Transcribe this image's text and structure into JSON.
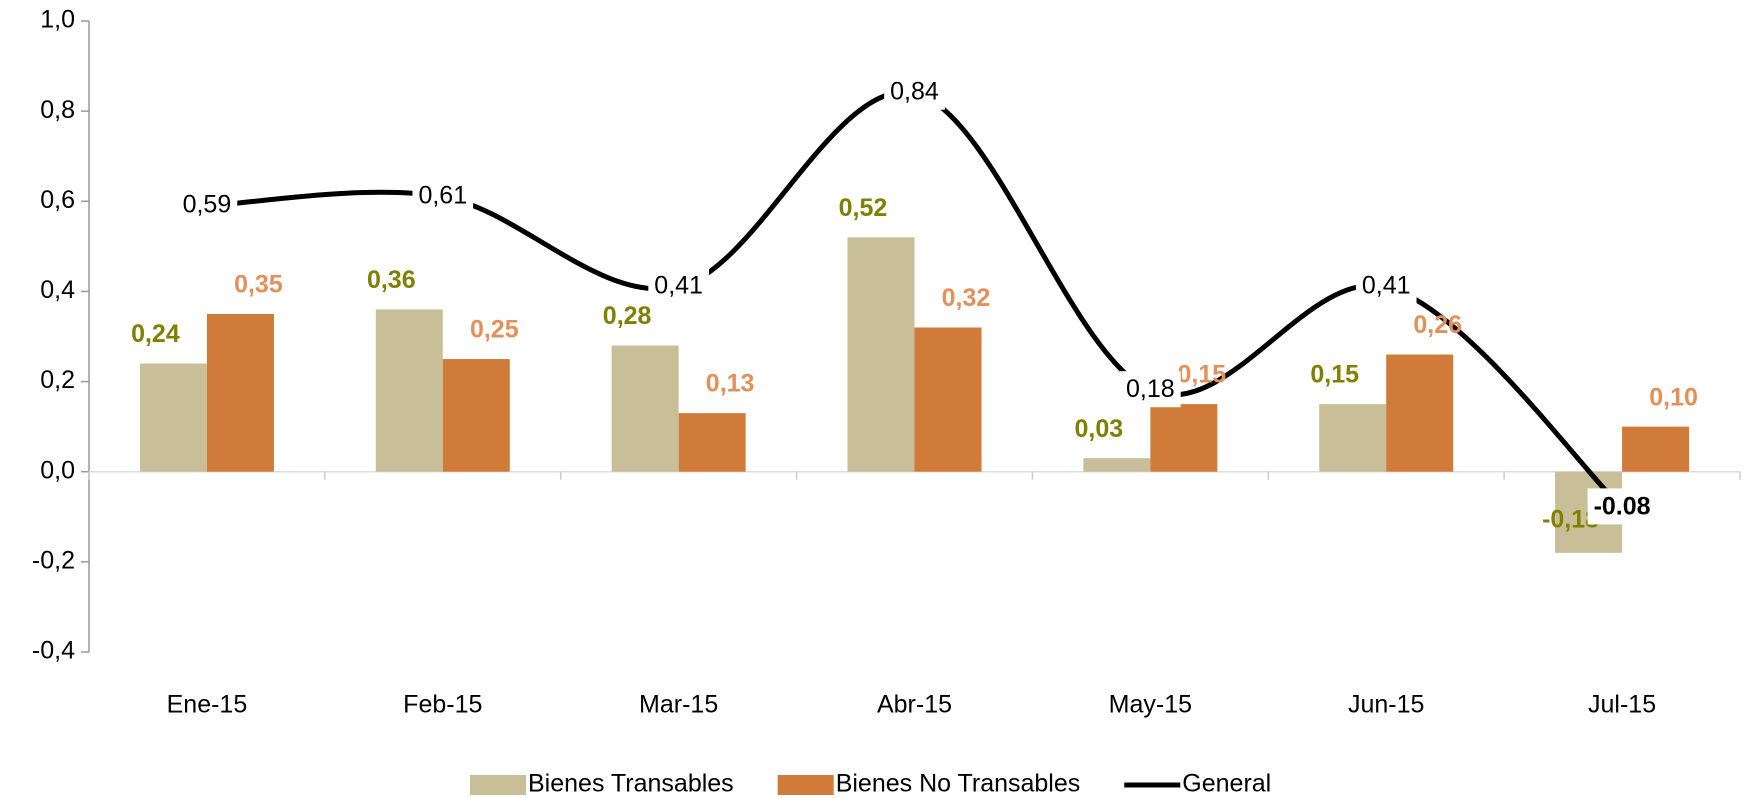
{
  "chart_data": {
    "type": "bar",
    "categories": [
      "Ene-15",
      "Feb-15",
      "Mar-15",
      "Abr-15",
      "May-15",
      "Jun-15",
      "Jul-15"
    ],
    "series": [
      {
        "name": "Bienes Transables",
        "type": "bar",
        "color": "#c8bf98",
        "label_color": "#7f7f00",
        "values": [
          0.24,
          0.36,
          0.28,
          0.52,
          0.03,
          0.15,
          -0.18
        ],
        "value_labels": [
          "0,24",
          "0,36",
          "0,28",
          "0,52",
          "0,03",
          "0,15",
          "-0,18"
        ]
      },
      {
        "name": "Bienes No Transables",
        "type": "bar",
        "color": "#d07b3a",
        "label_color": "#e3905a",
        "values": [
          0.35,
          0.25,
          0.13,
          0.32,
          0.15,
          0.26,
          0.1
        ],
        "value_labels": [
          "0,35",
          "0,25",
          "0,13",
          "0,32",
          "0,15",
          "0,26",
          "0,10"
        ]
      },
      {
        "name": "General",
        "type": "line",
        "color": "#000000",
        "label_color": "#000000",
        "values": [
          0.59,
          0.61,
          0.41,
          0.84,
          0.18,
          0.41,
          -0.08
        ],
        "value_labels": [
          "0,59",
          "0,61",
          "0,41",
          "0,84",
          "0,18",
          "0,41",
          "-0.08"
        ]
      }
    ],
    "ylim": [
      -0.4,
      1.0
    ],
    "yticks": [
      {
        "value": -0.4,
        "label": "-0,4"
      },
      {
        "value": -0.2,
        "label": "-0,2"
      },
      {
        "value": 0,
        "label": "0,0"
      },
      {
        "value": 0.2,
        "label": "0,2"
      },
      {
        "value": 0.4,
        "label": "0,4"
      },
      {
        "value": 0.6,
        "label": "0,6"
      },
      {
        "value": 0.8,
        "label": "0,8"
      },
      {
        "value": 1.0,
        "label": "1,0"
      }
    ],
    "legend": "bottom"
  }
}
